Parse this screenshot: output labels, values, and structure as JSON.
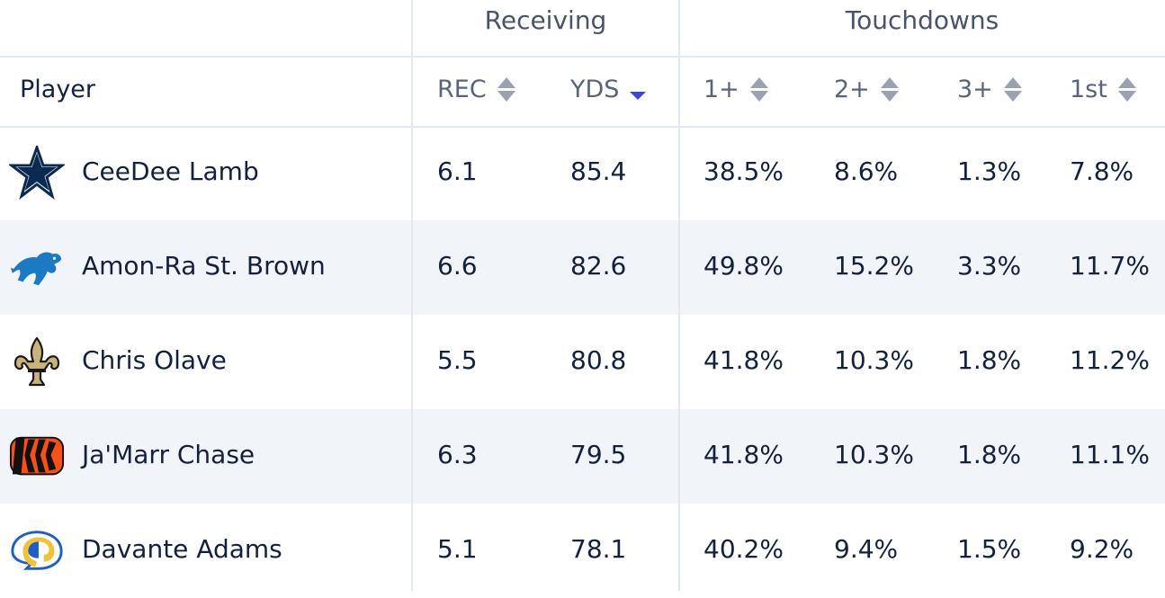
{
  "groups": {
    "receiving": "Receiving",
    "touchdowns": "Touchdowns"
  },
  "columns": {
    "player": "Player",
    "rec": "REC",
    "yds": "YDS",
    "td1": "1+",
    "td2": "2+",
    "td3": "3+",
    "first": "1st"
  },
  "sort": {
    "column": "YDS",
    "direction": "descending"
  },
  "colors": {
    "sort_active": "#3c46d8",
    "alt_row": "#f1f4f8",
    "divider": "#e2e8ef"
  },
  "rows": [
    {
      "player": "CeeDee Lamb",
      "team_icon": "cowboys-star-icon",
      "rec": "6.1",
      "yds": "85.4",
      "td1": "38.5%",
      "td2": "8.6%",
      "td3": "1.3%",
      "first": "7.8%"
    },
    {
      "player": "Amon-Ra St. Brown",
      "team_icon": "lions-icon",
      "rec": "6.6",
      "yds": "82.6",
      "td1": "49.8%",
      "td2": "15.2%",
      "td3": "3.3%",
      "first": "11.7%"
    },
    {
      "player": "Chris Olave",
      "team_icon": "saints-fleur-de-lis-icon",
      "rec": "5.5",
      "yds": "80.8",
      "td1": "41.8%",
      "td2": "10.3%",
      "td3": "1.8%",
      "first": "11.2%"
    },
    {
      "player": "Ja'Marr Chase",
      "team_icon": "bengals-icon",
      "rec": "6.3",
      "yds": "79.5",
      "td1": "41.8%",
      "td2": "10.3%",
      "td3": "1.8%",
      "first": "11.1%"
    },
    {
      "player": "Davante Adams",
      "team_icon": "rams-icon",
      "rec": "5.1",
      "yds": "78.1",
      "td1": "40.2%",
      "td2": "9.4%",
      "td3": "1.5%",
      "first": "9.2%"
    }
  ]
}
